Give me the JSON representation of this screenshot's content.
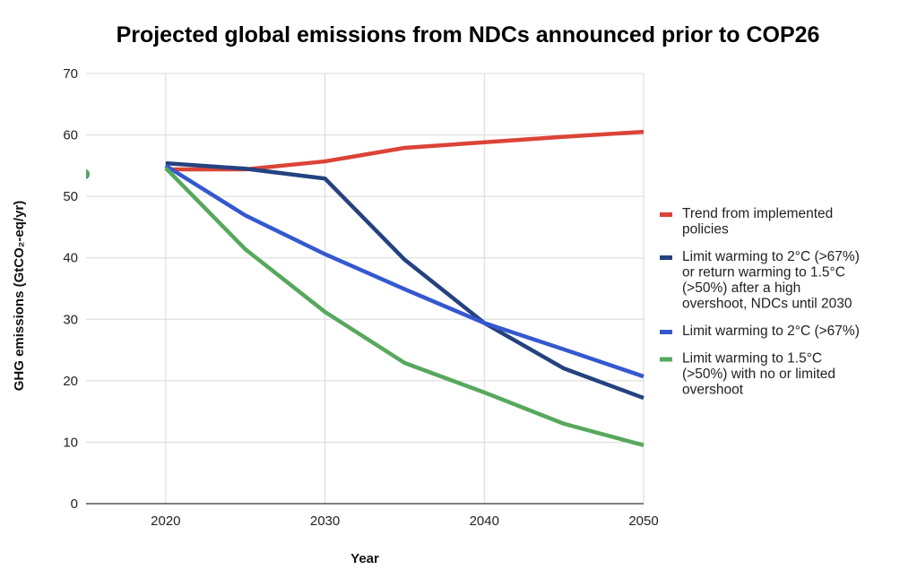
{
  "chart_data": {
    "type": "line",
    "title": "Projected global emissions from NDCs announced prior to COP26",
    "xlabel": "Year",
    "ylabel": "GHG emissions (GtCO₂-eq/yr)",
    "xlim": [
      2015,
      2050
    ],
    "ylim": [
      0,
      70
    ],
    "x_ticks": [
      2020,
      2030,
      2040,
      2050
    ],
    "y_ticks": [
      0,
      10,
      20,
      30,
      40,
      50,
      60,
      70
    ],
    "grid": true,
    "legend_position": "right",
    "x": [
      2020,
      2025,
      2030,
      2035,
      2040,
      2045,
      2050
    ],
    "series": [
      {
        "name": "Trend from implemented policies",
        "legend_lines": [
          "Trend from implemented",
          "policies"
        ],
        "color": "#db4437",
        "values": [
          54.4,
          54.4,
          55.7,
          57.9,
          58.8,
          59.7,
          60.5
        ]
      },
      {
        "name": "Limit warming to 2°C (>67%) or return warming to 1.5°C (>50%) after a high overshoot, NDCs until 2030",
        "legend_lines": [
          "Limit warming to 2°C (>67%)",
          "or return warming to 1.5°C",
          "(>50%) after a high",
          "overshoot, NDCs until 2030"
        ],
        "color": "#24427f",
        "values": [
          55.4,
          54.5,
          52.9,
          39.7,
          29.4,
          22.0,
          17.2
        ]
      },
      {
        "name": "Limit warming to 2°C (>67%)",
        "legend_lines": [
          "Limit warming to 2°C (>67%)"
        ],
        "color": "#3558cf",
        "values": [
          55.0,
          46.9,
          40.6,
          34.9,
          29.4,
          25.1,
          20.7
        ]
      },
      {
        "name": "Limit warming to 1.5°C (>50%) with no or limited overshoot",
        "legend_lines": [
          "Limit warming to 1.5°C",
          "(>50%) with no or limited",
          "overshoot"
        ],
        "color": "#57a85d",
        "values": [
          54.6,
          41.4,
          31.2,
          22.9,
          18.1,
          13.0,
          9.5
        ]
      }
    ],
    "annotations": [
      {
        "label": "2015 marker",
        "x": 2015,
        "y": 53.7,
        "color": "#57a85d"
      }
    ]
  }
}
